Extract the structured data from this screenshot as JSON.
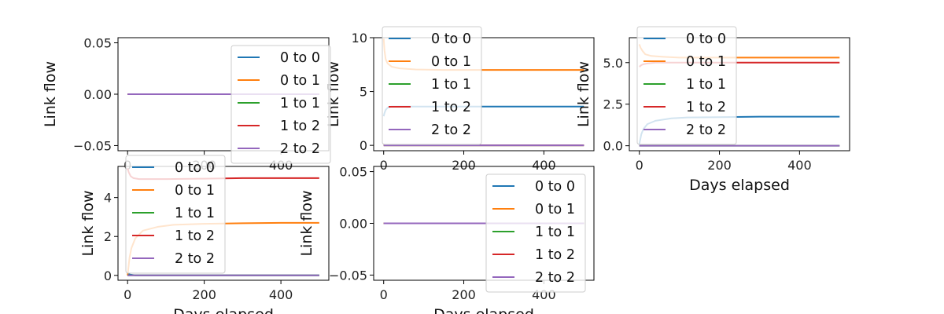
{
  "chart_data": [
    {
      "type": "line",
      "title": "",
      "xlabel": "",
      "ylabel": "Link flow",
      "xlim": [
        -25,
        525
      ],
      "ylim": [
        -0.055,
        0.055
      ],
      "xticks": [
        0,
        200,
        400
      ],
      "yticks": [
        -0.05,
        0.0,
        0.05
      ],
      "ytick_labels": [
        "−0.05",
        "0.00",
        "0.05"
      ],
      "legend": "upper right",
      "grid": false,
      "series": [
        {
          "name": "0 to 0",
          "color": "#1f77b4",
          "x": [
            0,
            500
          ],
          "y": [
            0,
            0
          ]
        },
        {
          "name": "0 to 1",
          "color": "#ff7f0e",
          "x": [
            0,
            500
          ],
          "y": [
            0,
            0
          ]
        },
        {
          "name": "1 to 1",
          "color": "#2ca02c",
          "x": [
            0,
            500
          ],
          "y": [
            0,
            0
          ]
        },
        {
          "name": "1 to 2",
          "color": "#d62728",
          "x": [
            0,
            500
          ],
          "y": [
            0,
            0
          ]
        },
        {
          "name": "2 to 2",
          "color": "#9467bd",
          "x": [
            0,
            500
          ],
          "y": [
            0,
            0
          ]
        }
      ]
    },
    {
      "type": "line",
      "title": "",
      "xlabel": "",
      "ylabel": "Link flow",
      "xlim": [
        -25,
        525
      ],
      "ylim": [
        -0.5,
        10
      ],
      "xticks": [
        0,
        200,
        400
      ],
      "yticks": [
        0,
        5,
        10
      ],
      "ytick_labels": [
        "0",
        "5",
        "10"
      ],
      "legend": "upper left",
      "grid": false,
      "series": [
        {
          "name": "0 to 0",
          "color": "#1f77b4",
          "x": [
            0,
            2,
            5,
            10,
            20,
            40,
            80,
            150,
            250,
            400,
            500
          ],
          "y": [
            2.7,
            3.0,
            3.3,
            3.5,
            3.6,
            3.6,
            3.6,
            3.6,
            3.6,
            3.6,
            3.6
          ]
        },
        {
          "name": "0 to 1",
          "color": "#ff7f0e",
          "x": [
            0,
            2,
            5,
            10,
            20,
            40,
            80,
            150,
            250,
            400,
            500
          ],
          "y": [
            9.9,
            8.8,
            8.0,
            7.6,
            7.3,
            7.15,
            7.05,
            7.0,
            7.0,
            7.0,
            7.0
          ]
        },
        {
          "name": "1 to 1",
          "color": "#2ca02c",
          "x": [
            0,
            500
          ],
          "y": [
            0,
            0
          ]
        },
        {
          "name": "1 to 2",
          "color": "#d62728",
          "x": [
            0,
            500
          ],
          "y": [
            0,
            0
          ]
        },
        {
          "name": "2 to 2",
          "color": "#9467bd",
          "x": [
            0,
            500
          ],
          "y": [
            0,
            0
          ]
        }
      ]
    },
    {
      "type": "line",
      "title": "",
      "xlabel": "Days elapsed",
      "ylabel": "Link flow",
      "xlim": [
        -25,
        525
      ],
      "ylim": [
        -0.3,
        6.5
      ],
      "xticks": [
        0,
        200,
        400
      ],
      "yticks": [
        0.0,
        2.5,
        5.0
      ],
      "ytick_labels": [
        "0.0",
        "2.5",
        "5.0"
      ],
      "legend": "upper left",
      "grid": false,
      "series": [
        {
          "name": "0 to 0",
          "color": "#1f77b4",
          "x": [
            0,
            5,
            10,
            20,
            40,
            80,
            120,
            200,
            300,
            400,
            500
          ],
          "y": [
            0.1,
            0.7,
            1.0,
            1.3,
            1.5,
            1.65,
            1.7,
            1.72,
            1.75,
            1.75,
            1.75
          ]
        },
        {
          "name": "0 to 1",
          "color": "#ff7f0e",
          "x": [
            0,
            3,
            8,
            15,
            30,
            60,
            100,
            200,
            300,
            400,
            500
          ],
          "y": [
            6.1,
            5.9,
            5.7,
            5.5,
            5.4,
            5.35,
            5.3,
            5.3,
            5.3,
            5.3,
            5.3
          ]
        },
        {
          "name": "1 to 1",
          "color": "#2ca02c",
          "x": [
            0,
            500
          ],
          "y": [
            0,
            0
          ]
        },
        {
          "name": "1 to 2",
          "color": "#d62728",
          "x": [
            0,
            5,
            10,
            20,
            40,
            80,
            150,
            250,
            400,
            500
          ],
          "y": [
            4.75,
            4.85,
            4.9,
            4.95,
            5.0,
            5.0,
            5.0,
            5.0,
            5.0,
            5.0
          ]
        },
        {
          "name": "2 to 2",
          "color": "#9467bd",
          "x": [
            0,
            500
          ],
          "y": [
            0,
            0
          ]
        }
      ]
    },
    {
      "type": "line",
      "title": "",
      "xlabel": "Days elapsed",
      "ylabel": "Link flow",
      "xlim": [
        -25,
        525
      ],
      "ylim": [
        -0.25,
        5.6
      ],
      "xticks": [
        0,
        200,
        400
      ],
      "yticks": [
        0,
        2,
        4
      ],
      "ytick_labels": [
        "0",
        "2",
        "4"
      ],
      "legend": "upper left",
      "grid": false,
      "series": [
        {
          "name": "0 to 0",
          "color": "#1f77b4",
          "x": [
            0,
            5,
            20,
            500
          ],
          "y": [
            0.1,
            0.05,
            0.0,
            0.0
          ]
        },
        {
          "name": "0 to 1",
          "color": "#ff7f0e",
          "x": [
            0,
            5,
            10,
            20,
            40,
            80,
            120,
            200,
            300,
            400,
            500
          ],
          "y": [
            0.0,
            0.9,
            1.4,
            1.9,
            2.3,
            2.5,
            2.6,
            2.65,
            2.68,
            2.7,
            2.7
          ]
        },
        {
          "name": "1 to 1",
          "color": "#2ca02c",
          "x": [
            0,
            500
          ],
          "y": [
            0,
            0
          ]
        },
        {
          "name": "1 to 2",
          "color": "#d62728",
          "x": [
            0,
            3,
            8,
            15,
            30,
            60,
            100,
            200,
            300,
            400,
            500
          ],
          "y": [
            5.5,
            5.3,
            5.1,
            5.0,
            4.95,
            4.95,
            4.95,
            4.97,
            5.0,
            5.0,
            5.0
          ]
        },
        {
          "name": "2 to 2",
          "color": "#9467bd",
          "x": [
            0,
            500
          ],
          "y": [
            0,
            0
          ]
        }
      ]
    },
    {
      "type": "line",
      "title": "",
      "xlabel": "Days elapsed",
      "ylabel": "Link flow",
      "xlim": [
        -25,
        525
      ],
      "ylim": [
        -0.055,
        0.055
      ],
      "xticks": [
        0,
        200,
        400
      ],
      "yticks": [
        -0.05,
        0.0,
        0.05
      ],
      "ytick_labels": [
        "−0.05",
        "0.00",
        "0.05"
      ],
      "legend": "upper right",
      "grid": false,
      "series": [
        {
          "name": "0 to 0",
          "color": "#1f77b4",
          "x": [
            0,
            500
          ],
          "y": [
            0,
            0
          ]
        },
        {
          "name": "0 to 1",
          "color": "#ff7f0e",
          "x": [
            0,
            500
          ],
          "y": [
            0,
            0
          ]
        },
        {
          "name": "1 to 1",
          "color": "#2ca02c",
          "x": [
            0,
            500
          ],
          "y": [
            0,
            0
          ]
        },
        {
          "name": "1 to 2",
          "color": "#d62728",
          "x": [
            0,
            500
          ],
          "y": [
            0,
            0
          ]
        },
        {
          "name": "2 to 2",
          "color": "#9467bd",
          "x": [
            0,
            500
          ],
          "y": [
            0,
            0
          ]
        }
      ]
    }
  ]
}
